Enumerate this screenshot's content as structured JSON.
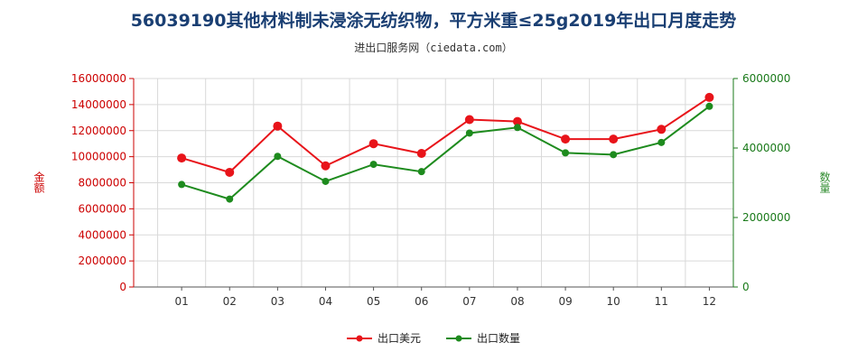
{
  "title": "56039190其他材料制未浸涂无纺织物，平方米重≤25g2019年出口月度走势",
  "subtitle": "进出口服务网（ciedata.com）",
  "ylabel_left": "金额",
  "ylabel_right": "数量",
  "colors": {
    "usd": "#e8141a",
    "qty": "#1e8b1e",
    "axis_left": "#cc0000",
    "axis_right": "#1a7a1a"
  },
  "legend": [
    {
      "label": "出口美元",
      "series": "usd"
    },
    {
      "label": "出口数量",
      "series": "qty"
    }
  ],
  "chart_data": {
    "type": "line",
    "title": "56039190其他材料制未浸涂无纺织物，平方米重≤25g2019年出口月度走势",
    "categories": [
      "01",
      "02",
      "03",
      "04",
      "05",
      "06",
      "07",
      "08",
      "09",
      "10",
      "11",
      "12"
    ],
    "series": [
      {
        "name": "出口美元",
        "axis": "left",
        "values": [
          9900000,
          8800000,
          12350000,
          9300000,
          11000000,
          10250000,
          12850000,
          12700000,
          11350000,
          11350000,
          12100000,
          14550000
        ]
      },
      {
        "name": "出口数量",
        "axis": "right",
        "values": [
          2950000,
          2530000,
          3760000,
          3040000,
          3530000,
          3320000,
          4430000,
          4590000,
          3860000,
          3810000,
          4160000,
          5200000
        ]
      }
    ],
    "y_left": {
      "label": "金额",
      "ylim": [
        0,
        16000000
      ],
      "ticks": [
        "0",
        "2000000",
        "4000000",
        "6000000",
        "8000000",
        "10000000",
        "12000000",
        "14000000",
        "16000000"
      ]
    },
    "y_right": {
      "label": "数量",
      "ylim": [
        0,
        6000000
      ],
      "ticks": [
        "0",
        "2000000",
        "4000000",
        "6000000"
      ]
    },
    "grid": true,
    "legend_position": "bottom"
  }
}
